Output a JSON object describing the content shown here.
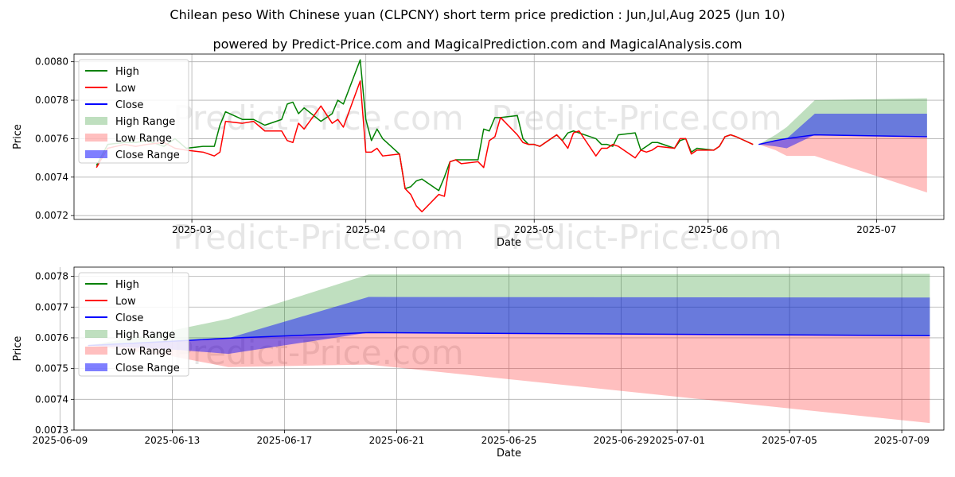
{
  "title": "Chilean peso With Chinese yuan (CLPCNY) short term price prediction : Jun,Jul,Aug 2025 (Jun 10)",
  "subtitle": "powered by Predict-Price.com and MagicalPrediction.com and MagicalAnalysis.com",
  "watermark": "Predict-Price.com",
  "colors": {
    "high": "#008000",
    "low": "#ff0000",
    "close": "#0000ff",
    "high_range": "#008000",
    "low_range": "#ff0000",
    "close_range": "#0000ff"
  },
  "chart_data": [
    {
      "type": "line",
      "xlabel": "Date",
      "ylabel": "Price",
      "xlim": [
        "2025-02-08",
        "2025-07-13"
      ],
      "ylim": [
        0.00718,
        0.00804
      ],
      "x_ticks": [
        "2025-03-01",
        "2025-04-01",
        "2025-05-01",
        "2025-06-01",
        "2025-07-01"
      ],
      "x_tick_labels": [
        "2025-03",
        "2025-04",
        "2025-05",
        "2025-06",
        "2025-07"
      ],
      "y_ticks": [
        "0.0072",
        "0.0074",
        "0.0076",
        "0.0078",
        "0.0080"
      ],
      "grid": true,
      "legend_position": "top-left",
      "legend": [
        "High",
        "Low",
        "Close",
        "High Range",
        "Low Range",
        "Close Range"
      ],
      "series": [
        {
          "name": "High",
          "x": [
            "2025-02-12",
            "2025-02-14",
            "2025-02-17",
            "2025-02-19",
            "2025-02-21",
            "2025-02-24",
            "2025-02-26",
            "2025-02-28",
            "2025-03-03",
            "2025-03-05",
            "2025-03-06",
            "2025-03-07",
            "2025-03-10",
            "2025-03-12",
            "2025-03-14",
            "2025-03-17",
            "2025-03-18",
            "2025-03-19",
            "2025-03-20",
            "2025-03-21",
            "2025-03-24",
            "2025-03-26",
            "2025-03-27",
            "2025-03-28",
            "2025-03-31",
            "2025-04-01",
            "2025-04-02",
            "2025-04-03",
            "2025-04-04",
            "2025-04-07",
            "2025-04-08",
            "2025-04-09",
            "2025-04-10",
            "2025-04-11",
            "2025-04-14",
            "2025-04-15",
            "2025-04-16",
            "2025-04-17",
            "2025-04-18",
            "2025-04-21",
            "2025-04-22",
            "2025-04-23",
            "2025-04-24",
            "2025-04-25",
            "2025-04-28",
            "2025-04-29",
            "2025-04-30",
            "2025-05-01",
            "2025-05-02",
            "2025-05-05",
            "2025-05-06",
            "2025-05-07",
            "2025-05-08",
            "2025-05-09",
            "2025-05-12",
            "2025-05-13",
            "2025-05-14",
            "2025-05-15",
            "2025-05-16",
            "2025-05-19",
            "2025-05-20",
            "2025-05-21",
            "2025-05-22",
            "2025-05-23",
            "2025-05-26",
            "2025-05-27",
            "2025-05-28",
            "2025-05-29",
            "2025-05-30",
            "2025-06-02",
            "2025-06-03",
            "2025-06-04",
            "2025-06-05",
            "2025-06-06",
            "2025-06-09"
          ],
          "values": [
            0.00746,
            0.00757,
            0.00758,
            0.00758,
            0.00759,
            0.00756,
            0.0076,
            0.00755,
            0.00756,
            0.00756,
            0.00767,
            0.00774,
            0.0077,
            0.0077,
            0.00767,
            0.0077,
            0.00778,
            0.00779,
            0.00773,
            0.00776,
            0.00769,
            0.00773,
            0.0078,
            0.00778,
            0.00801,
            0.0077,
            0.00759,
            0.00765,
            0.0076,
            0.00752,
            0.00734,
            0.00735,
            0.00738,
            0.00739,
            0.00733,
            0.0074,
            0.00748,
            0.00749,
            0.00749,
            0.00749,
            0.00765,
            0.00764,
            0.00771,
            0.00771,
            0.00772,
            0.0076,
            0.00757,
            0.00757,
            0.00756,
            0.00762,
            0.00759,
            0.00763,
            0.00764,
            0.00763,
            0.0076,
            0.00757,
            0.00757,
            0.00756,
            0.00762,
            0.00763,
            0.00754,
            0.00756,
            0.00758,
            0.00758,
            0.00755,
            0.00759,
            0.0076,
            0.00753,
            0.00755,
            0.00754,
            0.00756,
            0.00761,
            0.00762,
            0.00761,
            0.00757
          ]
        },
        {
          "name": "Low",
          "x": [
            "2025-02-12",
            "2025-02-14",
            "2025-02-17",
            "2025-02-19",
            "2025-02-21",
            "2025-02-24",
            "2025-02-26",
            "2025-02-28",
            "2025-03-03",
            "2025-03-05",
            "2025-03-06",
            "2025-03-07",
            "2025-03-10",
            "2025-03-12",
            "2025-03-14",
            "2025-03-17",
            "2025-03-18",
            "2025-03-19",
            "2025-03-20",
            "2025-03-21",
            "2025-03-24",
            "2025-03-26",
            "2025-03-27",
            "2025-03-28",
            "2025-03-31",
            "2025-04-01",
            "2025-04-02",
            "2025-04-03",
            "2025-04-04",
            "2025-04-07",
            "2025-04-08",
            "2025-04-09",
            "2025-04-10",
            "2025-04-11",
            "2025-04-14",
            "2025-04-15",
            "2025-04-16",
            "2025-04-17",
            "2025-04-18",
            "2025-04-21",
            "2025-04-22",
            "2025-04-23",
            "2025-04-24",
            "2025-04-25",
            "2025-04-28",
            "2025-04-29",
            "2025-04-30",
            "2025-05-01",
            "2025-05-02",
            "2025-05-05",
            "2025-05-06",
            "2025-05-07",
            "2025-05-08",
            "2025-05-09",
            "2025-05-12",
            "2025-05-13",
            "2025-05-14",
            "2025-05-15",
            "2025-05-16",
            "2025-05-19",
            "2025-05-20",
            "2025-05-21",
            "2025-05-22",
            "2025-05-23",
            "2025-05-26",
            "2025-05-27",
            "2025-05-28",
            "2025-05-29",
            "2025-05-30",
            "2025-06-02",
            "2025-06-03",
            "2025-06-04",
            "2025-06-05",
            "2025-06-06",
            "2025-06-09"
          ],
          "values": [
            0.00745,
            0.00755,
            0.00757,
            0.00756,
            0.00757,
            0.00758,
            0.00755,
            0.00754,
            0.00753,
            0.00751,
            0.00753,
            0.00769,
            0.00768,
            0.00769,
            0.00764,
            0.00764,
            0.00759,
            0.00758,
            0.00768,
            0.00765,
            0.00777,
            0.00768,
            0.0077,
            0.00766,
            0.0079,
            0.00753,
            0.00753,
            0.00755,
            0.00751,
            0.00752,
            0.00734,
            0.00731,
            0.00725,
            0.00722,
            0.00731,
            0.0073,
            0.00748,
            0.00749,
            0.00747,
            0.00748,
            0.00745,
            0.00759,
            0.00761,
            0.00771,
            0.00762,
            0.00758,
            0.00757,
            0.00757,
            0.00756,
            0.00762,
            0.00759,
            0.00755,
            0.00763,
            0.00764,
            0.00751,
            0.00755,
            0.00755,
            0.00757,
            0.00756,
            0.0075,
            0.00754,
            0.00753,
            0.00754,
            0.00756,
            0.00755,
            0.0076,
            0.0076,
            0.00752,
            0.00754,
            0.00754,
            0.00756,
            0.00761,
            0.00762,
            0.00761,
            0.00757
          ]
        }
      ],
      "forecast": {
        "x": [
          "2025-06-10",
          "2025-06-13",
          "2025-06-15",
          "2025-06-20",
          "2025-07-10"
        ],
        "close": [
          0.00757,
          0.00759,
          0.0076,
          0.00762,
          0.00761
        ],
        "high_range": [
          [
            0.00757,
            0.00757
          ],
          [
            0.00759,
            0.00762
          ],
          [
            0.0076,
            0.00766
          ],
          [
            0.00762,
            0.0078
          ],
          [
            0.00761,
            0.00781
          ]
        ],
        "low_range": [
          [
            0.00757,
            0.00757
          ],
          [
            0.00754,
            0.00759
          ],
          [
            0.00751,
            0.0076
          ],
          [
            0.00751,
            0.00762
          ],
          [
            0.00732,
            0.00761
          ]
        ],
        "close_range": [
          [
            0.00757,
            0.00757
          ],
          [
            0.00756,
            0.00759
          ],
          [
            0.00755,
            0.0076
          ],
          [
            0.00762,
            0.00773
          ],
          [
            0.00761,
            0.00773
          ]
        ]
      }
    },
    {
      "type": "area",
      "xlabel": "Date",
      "ylabel": "Price",
      "xlim": [
        "2025-06-09T12:00",
        "2025-07-10T12:00"
      ],
      "ylim": [
        0.0073,
        0.00783
      ],
      "x_ticks": [
        "2025-06-09",
        "2025-06-13",
        "2025-06-17",
        "2025-06-21",
        "2025-06-25",
        "2025-06-29",
        "2025-07-01",
        "2025-07-05",
        "2025-07-09"
      ],
      "x_tick_labels": [
        "2025-06-09",
        "2025-06-13",
        "2025-06-17",
        "2025-06-21",
        "2025-06-25",
        "2025-06-29",
        "2025-07-01",
        "2025-07-05",
        "2025-07-09"
      ],
      "y_ticks": [
        "0.0073",
        "0.0074",
        "0.0075",
        "0.0076",
        "0.0077",
        "0.0078"
      ],
      "grid": true,
      "legend_position": "top-left",
      "legend": [
        "High",
        "Low",
        "Close",
        "High Range",
        "Low Range",
        "Close Range"
      ],
      "series": [
        {
          "name": "Close",
          "x": [
            "2025-06-10",
            "2025-06-13",
            "2025-06-15",
            "2025-06-20",
            "2025-07-10"
          ],
          "values": [
            0.007575,
            0.007589,
            0.007599,
            0.007617,
            0.007607
          ]
        }
      ],
      "ranges": {
        "x": [
          "2025-06-10",
          "2025-06-13",
          "2025-06-15",
          "2025-06-20",
          "2025-07-10"
        ],
        "high_range": [
          [
            0.007575,
            0.007575
          ],
          [
            0.007589,
            0.007624
          ],
          [
            0.007599,
            0.007662
          ],
          [
            0.007617,
            0.007806
          ],
          [
            0.007607,
            0.007808
          ]
        ],
        "low_range": [
          [
            0.007575,
            0.007575
          ],
          [
            0.00754,
            0.007589
          ],
          [
            0.007505,
            0.007599
          ],
          [
            0.007513,
            0.007617
          ],
          [
            0.007323,
            0.007607
          ]
        ],
        "close_range": [
          [
            0.007575,
            0.007575
          ],
          [
            0.007562,
            0.007589
          ],
          [
            0.007548,
            0.007599
          ],
          [
            0.007617,
            0.007733
          ],
          [
            0.007607,
            0.007731
          ]
        ]
      }
    }
  ]
}
